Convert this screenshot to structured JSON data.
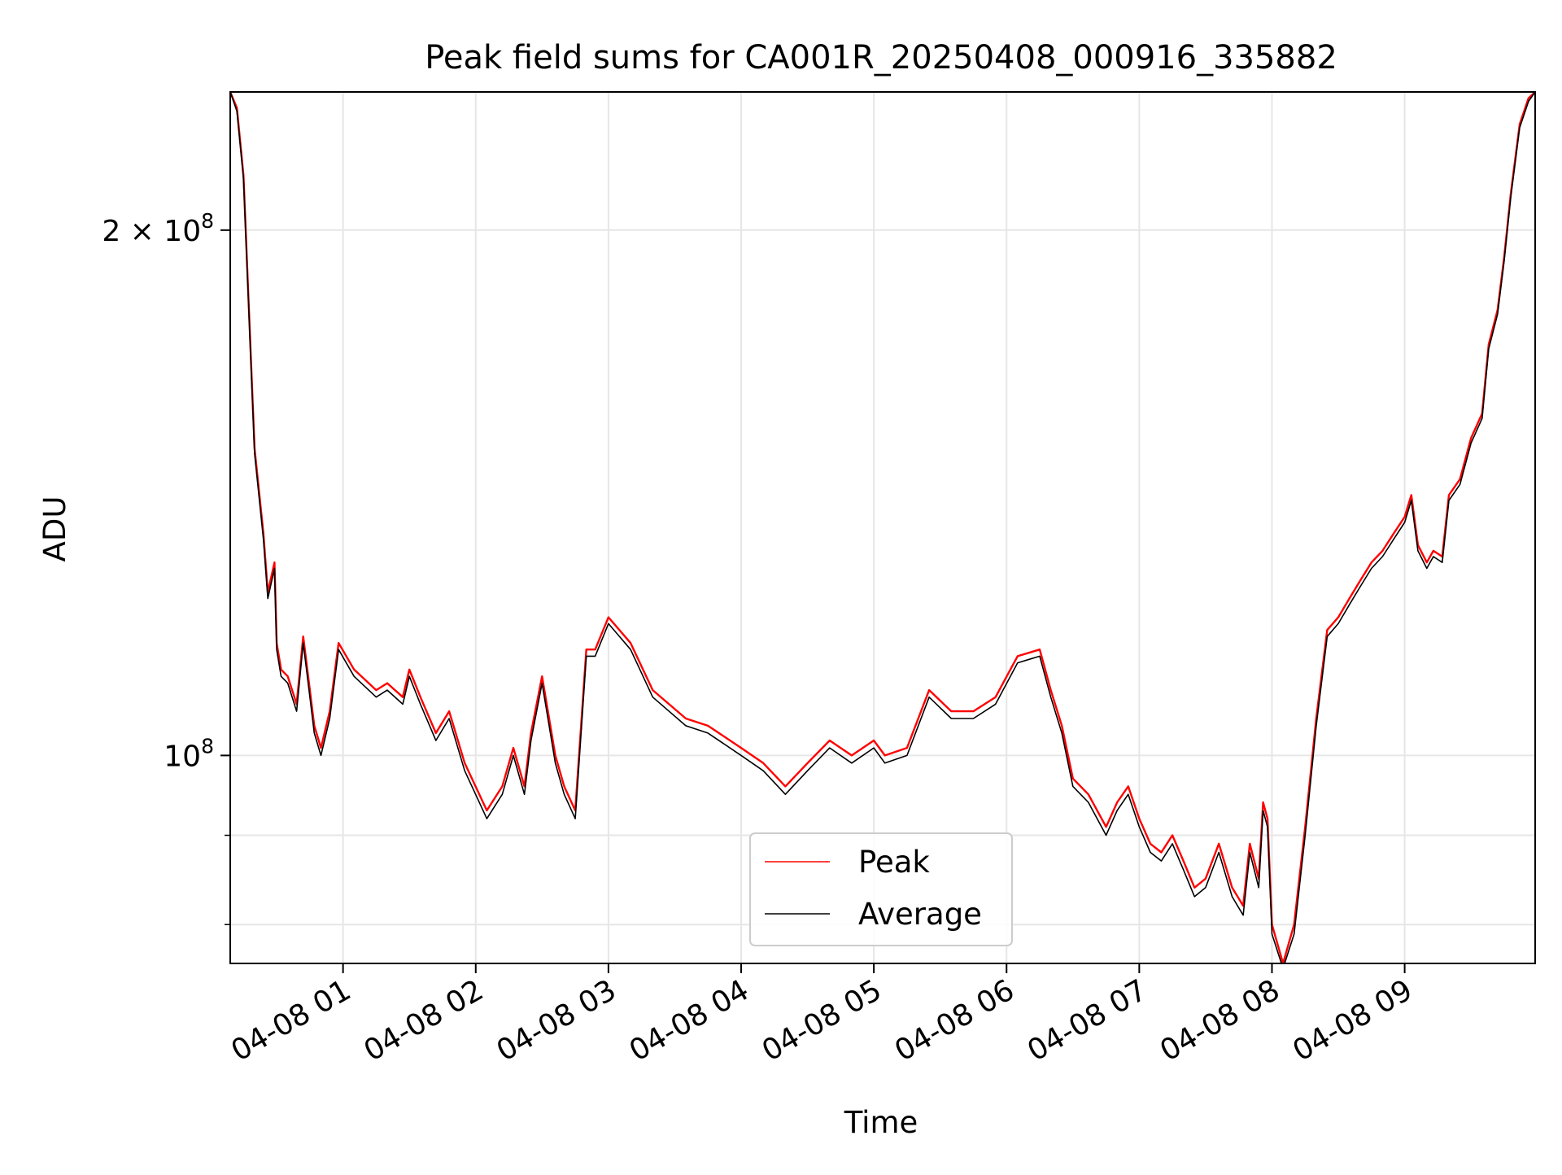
{
  "chart_data": {
    "type": "line",
    "title": "Peak field sums for CA001R_20250408_000916_335882",
    "xlabel": "Time",
    "ylabel": "ADU",
    "y_scale": "log",
    "grid": true,
    "legend_position": "lower-center",
    "xlim": [
      "2025-04-08 00:09",
      "2025-04-08 09:59"
    ],
    "ylim": [
      76000000,
      240000000
    ],
    "x_ticks": [
      {
        "value": "2025-04-08 01:00",
        "label": "04-08 01"
      },
      {
        "value": "2025-04-08 02:00",
        "label": "04-08 02"
      },
      {
        "value": "2025-04-08 03:00",
        "label": "04-08 03"
      },
      {
        "value": "2025-04-08 04:00",
        "label": "04-08 04"
      },
      {
        "value": "2025-04-08 05:00",
        "label": "04-08 05"
      },
      {
        "value": "2025-04-08 06:00",
        "label": "04-08 06"
      },
      {
        "value": "2025-04-08 07:00",
        "label": "04-08 07"
      },
      {
        "value": "2025-04-08 08:00",
        "label": "04-08 08"
      },
      {
        "value": "2025-04-08 09:00",
        "label": "04-08 09"
      }
    ],
    "y_major_ticks": [
      {
        "value": 100000000,
        "mantissa": "",
        "base": "10",
        "exp": "8"
      },
      {
        "value": 200000000,
        "mantissa": "2 × ",
        "base": "10",
        "exp": "8"
      }
    ],
    "y_minor_ticks": [
      90000000,
      80000000
    ],
    "series": [
      {
        "name": "Peak",
        "color": "#ff0000",
        "x": [
          "2025-04-08 00:09",
          "2025-04-08 00:12",
          "2025-04-08 00:15",
          "2025-04-08 00:20",
          "2025-04-08 00:24",
          "2025-04-08 00:26",
          "2025-04-08 00:29",
          "2025-04-08 00:30",
          "2025-04-08 00:32",
          "2025-04-08 00:35",
          "2025-04-08 00:39",
          "2025-04-08 00:42",
          "2025-04-08 00:45",
          "2025-04-08 00:47",
          "2025-04-08 00:50",
          "2025-04-08 00:54",
          "2025-04-08 00:58",
          "2025-04-08 01:05",
          "2025-04-08 01:15",
          "2025-04-08 01:20",
          "2025-04-08 01:27",
          "2025-04-08 01:30",
          "2025-04-08 01:35",
          "2025-04-08 01:42",
          "2025-04-08 01:48",
          "2025-04-08 01:55",
          "2025-04-08 02:05",
          "2025-04-08 02:12",
          "2025-04-08 02:17",
          "2025-04-08 02:22",
          "2025-04-08 02:25",
          "2025-04-08 02:30",
          "2025-04-08 02:36",
          "2025-04-08 02:40",
          "2025-04-08 02:45",
          "2025-04-08 02:50",
          "2025-04-08 02:54",
          "2025-04-08 03:00",
          "2025-04-08 03:10",
          "2025-04-08 03:20",
          "2025-04-08 03:35",
          "2025-04-08 03:45",
          "2025-04-08 04:00",
          "2025-04-08 04:10",
          "2025-04-08 04:20",
          "2025-04-08 04:30",
          "2025-04-08 04:40",
          "2025-04-08 04:50",
          "2025-04-08 05:00",
          "2025-04-08 05:05",
          "2025-04-08 05:15",
          "2025-04-08 05:25",
          "2025-04-08 05:35",
          "2025-04-08 05:45",
          "2025-04-08 05:55",
          "2025-04-08 06:05",
          "2025-04-08 06:15",
          "2025-04-08 06:20",
          "2025-04-08 06:25",
          "2025-04-08 06:30",
          "2025-04-08 06:37",
          "2025-04-08 06:45",
          "2025-04-08 06:50",
          "2025-04-08 06:55",
          "2025-04-08 07:00",
          "2025-04-08 07:05",
          "2025-04-08 07:10",
          "2025-04-08 07:15",
          "2025-04-08 07:20",
          "2025-04-08 07:25",
          "2025-04-08 07:30",
          "2025-04-08 07:36",
          "2025-04-08 07:42",
          "2025-04-08 07:47",
          "2025-04-08 07:50",
          "2025-04-08 07:54",
          "2025-04-08 07:56",
          "2025-04-08 07:58",
          "2025-04-08 08:00",
          "2025-04-08 08:05",
          "2025-04-08 08:10",
          "2025-04-08 08:15",
          "2025-04-08 08:20",
          "2025-04-08 08:25",
          "2025-04-08 08:30",
          "2025-04-08 08:35",
          "2025-04-08 08:40",
          "2025-04-08 08:45",
          "2025-04-08 08:50",
          "2025-04-08 08:55",
          "2025-04-08 09:00",
          "2025-04-08 09:03",
          "2025-04-08 09:06",
          "2025-04-08 09:10",
          "2025-04-08 09:13",
          "2025-04-08 09:17",
          "2025-04-08 09:20",
          "2025-04-08 09:25",
          "2025-04-08 09:30",
          "2025-04-08 09:35",
          "2025-04-08 09:38",
          "2025-04-08 09:42",
          "2025-04-08 09:45",
          "2025-04-08 09:48",
          "2025-04-08 09:52",
          "2025-04-08 09:56",
          "2025-04-08 09:59"
        ],
        "y": [
          240000000,
          235000000,
          215000000,
          150000000,
          134000000,
          124000000,
          129000000,
          116000000,
          112000000,
          111000000,
          107000000,
          117000000,
          109000000,
          104000000,
          101000000,
          106000000,
          116000000,
          112000000,
          109000000,
          110000000,
          108000000,
          112000000,
          108000000,
          103000000,
          106000000,
          99000000,
          93000000,
          96000000,
          101000000,
          96000000,
          103000000,
          111000000,
          100000000,
          96000000,
          93000000,
          115000000,
          115000000,
          120000000,
          116000000,
          109000000,
          105000000,
          104000000,
          101000000,
          99000000,
          96000000,
          99000000,
          102000000,
          100000000,
          102000000,
          100000000,
          101000000,
          109000000,
          106000000,
          106000000,
          108000000,
          114000000,
          115000000,
          109000000,
          104000000,
          97000000,
          95000000,
          91000000,
          94000000,
          96000000,
          92000000,
          89000000,
          88000000,
          90000000,
          87000000,
          84000000,
          85000000,
          89000000,
          84000000,
          82000000,
          89000000,
          85000000,
          94000000,
          92000000,
          80000000,
          76000000,
          80000000,
          91000000,
          105000000,
          118000000,
          120000000,
          123000000,
          126000000,
          129000000,
          131000000,
          134000000,
          137000000,
          141000000,
          132000000,
          129000000,
          131000000,
          130000000,
          141000000,
          144000000,
          152000000,
          157000000,
          172000000,
          180000000,
          193000000,
          210000000,
          230000000,
          238000000,
          240000000
        ]
      },
      {
        "name": "Average",
        "color": "#000000",
        "x": [
          "2025-04-08 00:09",
          "2025-04-08 00:12",
          "2025-04-08 00:15",
          "2025-04-08 00:20",
          "2025-04-08 00:24",
          "2025-04-08 00:26",
          "2025-04-08 00:29",
          "2025-04-08 00:30",
          "2025-04-08 00:32",
          "2025-04-08 00:35",
          "2025-04-08 00:39",
          "2025-04-08 00:42",
          "2025-04-08 00:45",
          "2025-04-08 00:47",
          "2025-04-08 00:50",
          "2025-04-08 00:54",
          "2025-04-08 00:58",
          "2025-04-08 01:05",
          "2025-04-08 01:15",
          "2025-04-08 01:20",
          "2025-04-08 01:27",
          "2025-04-08 01:30",
          "2025-04-08 01:35",
          "2025-04-08 01:42",
          "2025-04-08 01:48",
          "2025-04-08 01:55",
          "2025-04-08 02:05",
          "2025-04-08 02:12",
          "2025-04-08 02:17",
          "2025-04-08 02:22",
          "2025-04-08 02:25",
          "2025-04-08 02:30",
          "2025-04-08 02:36",
          "2025-04-08 02:40",
          "2025-04-08 02:45",
          "2025-04-08 02:50",
          "2025-04-08 02:54",
          "2025-04-08 03:00",
          "2025-04-08 03:10",
          "2025-04-08 03:20",
          "2025-04-08 03:35",
          "2025-04-08 03:45",
          "2025-04-08 04:00",
          "2025-04-08 04:10",
          "2025-04-08 04:20",
          "2025-04-08 04:30",
          "2025-04-08 04:40",
          "2025-04-08 04:50",
          "2025-04-08 05:00",
          "2025-04-08 05:05",
          "2025-04-08 05:15",
          "2025-04-08 05:25",
          "2025-04-08 05:35",
          "2025-04-08 05:45",
          "2025-04-08 05:55",
          "2025-04-08 06:05",
          "2025-04-08 06:15",
          "2025-04-08 06:20",
          "2025-04-08 06:25",
          "2025-04-08 06:30",
          "2025-04-08 06:37",
          "2025-04-08 06:45",
          "2025-04-08 06:50",
          "2025-04-08 06:55",
          "2025-04-08 07:00",
          "2025-04-08 07:05",
          "2025-04-08 07:10",
          "2025-04-08 07:15",
          "2025-04-08 07:20",
          "2025-04-08 07:25",
          "2025-04-08 07:30",
          "2025-04-08 07:36",
          "2025-04-08 07:42",
          "2025-04-08 07:47",
          "2025-04-08 07:50",
          "2025-04-08 07:54",
          "2025-04-08 07:56",
          "2025-04-08 07:58",
          "2025-04-08 08:00",
          "2025-04-08 08:05",
          "2025-04-08 08:10",
          "2025-04-08 08:15",
          "2025-04-08 08:20",
          "2025-04-08 08:25",
          "2025-04-08 08:30",
          "2025-04-08 08:35",
          "2025-04-08 08:40",
          "2025-04-08 08:45",
          "2025-04-08 08:50",
          "2025-04-08 08:55",
          "2025-04-08 09:00",
          "2025-04-08 09:03",
          "2025-04-08 09:06",
          "2025-04-08 09:10",
          "2025-04-08 09:13",
          "2025-04-08 09:17",
          "2025-04-08 09:20",
          "2025-04-08 09:25",
          "2025-04-08 09:30",
          "2025-04-08 09:35",
          "2025-04-08 09:38",
          "2025-04-08 09:42",
          "2025-04-08 09:45",
          "2025-04-08 09:48",
          "2025-04-08 09:52",
          "2025-04-08 09:56",
          "2025-04-08 09:59"
        ],
        "y": [
          240000000,
          234000000,
          214000000,
          149000000,
          133000000,
          123000000,
          128000000,
          115000000,
          111000000,
          110000000,
          106000000,
          116000000,
          108000000,
          103000000,
          100000000,
          105000000,
          115000000,
          111000000,
          108000000,
          109000000,
          107000000,
          111000000,
          107000000,
          102000000,
          105000000,
          98000000,
          92000000,
          95000000,
          100000000,
          95000000,
          102000000,
          110000000,
          99000000,
          95000000,
          92000000,
          114000000,
          114000000,
          119000000,
          115000000,
          108000000,
          104000000,
          103000000,
          100000000,
          98000000,
          95000000,
          98000000,
          101000000,
          99000000,
          101000000,
          99000000,
          100000000,
          108000000,
          105000000,
          105000000,
          107000000,
          113000000,
          114000000,
          108000000,
          103000000,
          96000000,
          94000000,
          90000000,
          93000000,
          95000000,
          91000000,
          88000000,
          87000000,
          89000000,
          86000000,
          83000000,
          84000000,
          88000000,
          83000000,
          81000000,
          88000000,
          84000000,
          93000000,
          91000000,
          79000000,
          75500000,
          79000000,
          90000000,
          104000000,
          117000000,
          119000000,
          122000000,
          125000000,
          128000000,
          130000000,
          133000000,
          136000000,
          140000000,
          131000000,
          128000000,
          130000000,
          129000000,
          140000000,
          143000000,
          151000000,
          156000000,
          171000000,
          179000000,
          192000000,
          209000000,
          229000000,
          237000000,
          240000000
        ]
      }
    ]
  }
}
